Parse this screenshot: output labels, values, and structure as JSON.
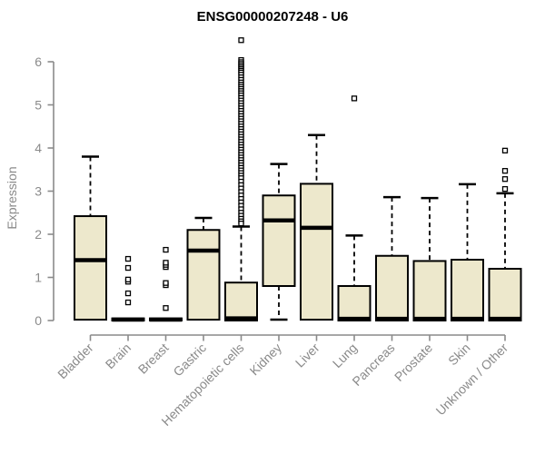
{
  "chart_data": {
    "type": "boxplot",
    "title": "ENSG00000207248 - U6",
    "ylabel": "Expression",
    "xlabel": "",
    "ylim": [
      0,
      6
    ],
    "yticks": [
      0,
      1,
      2,
      3,
      4,
      5,
      6
    ],
    "grid": false,
    "legend": "none",
    "categories": [
      "Bladder",
      "Brain",
      "Breast",
      "Gastric",
      "Hematopoietic cells",
      "Kidney",
      "Liver",
      "Lung",
      "Pancreas",
      "Prostate",
      "Skin",
      "Unknown / Other"
    ],
    "boxes": [
      {
        "category": "Bladder",
        "whisker_low": 0,
        "q1": 0.02,
        "median": 1.4,
        "q3": 2.42,
        "whisker_high": 3.8,
        "outliers": []
      },
      {
        "category": "Brain",
        "whisker_low": 0,
        "q1": 0,
        "median": 0.02,
        "q3": 0.05,
        "whisker_high": 0.05,
        "outliers": [
          0.42,
          0.63,
          0.9,
          0.95,
          1.22,
          1.43
        ]
      },
      {
        "category": "Breast",
        "whisker_low": 0,
        "q1": 0,
        "median": 0.02,
        "q3": 0.05,
        "whisker_high": 0.05,
        "outliers": [
          0.29,
          0.82,
          0.87,
          1.24,
          1.29,
          1.34,
          1.64
        ]
      },
      {
        "category": "Gastric",
        "whisker_low": 0,
        "q1": 0.02,
        "median": 1.62,
        "q3": 2.1,
        "whisker_high": 2.38,
        "outliers": []
      },
      {
        "category": "Hematopoietic cells",
        "whisker_low": 0,
        "q1": 0,
        "median": 0.05,
        "q3": 0.88,
        "whisker_high": 2.18,
        "outliers": [
          6.5,
          6.04,
          5.99,
          5.95,
          5.91,
          5.87,
          5.83,
          5.79,
          5.75,
          5.7,
          5.64,
          5.58,
          5.52,
          5.47,
          5.42,
          5.37,
          5.32,
          5.27,
          5.22,
          5.16,
          5.1,
          5.04,
          4.98,
          4.92,
          4.86,
          4.8,
          4.74,
          4.68,
          4.62,
          4.56,
          4.5,
          4.44,
          4.38,
          4.32,
          4.26,
          4.2,
          4.14,
          4.08,
          4.02,
          3.96,
          3.9,
          3.84,
          3.78,
          3.72,
          3.66,
          3.6,
          3.54,
          3.48,
          3.42,
          3.36,
          3.3,
          3.22,
          3.14,
          3.06,
          2.98,
          2.9,
          2.82,
          2.74,
          2.66,
          2.58,
          2.5,
          2.43,
          2.36,
          2.3,
          2.25
        ]
      },
      {
        "category": "Kidney",
        "whisker_low": 0.02,
        "q1": 0.8,
        "median": 2.32,
        "q3": 2.9,
        "whisker_high": 3.63,
        "outliers": []
      },
      {
        "category": "Liver",
        "whisker_low": 0,
        "q1": 0.02,
        "median": 2.15,
        "q3": 3.17,
        "whisker_high": 4.3,
        "outliers": []
      },
      {
        "category": "Lung",
        "whisker_low": 0,
        "q1": 0,
        "median": 0.04,
        "q3": 0.8,
        "whisker_high": 1.97,
        "outliers": [
          5.15
        ]
      },
      {
        "category": "Pancreas",
        "whisker_low": 0,
        "q1": 0,
        "median": 0.04,
        "q3": 1.5,
        "whisker_high": 2.86,
        "outliers": []
      },
      {
        "category": "Prostate",
        "whisker_low": 0,
        "q1": 0,
        "median": 0.04,
        "q3": 1.38,
        "whisker_high": 2.84,
        "outliers": []
      },
      {
        "category": "Skin",
        "whisker_low": 0,
        "q1": 0,
        "median": 0.04,
        "q3": 1.41,
        "whisker_high": 3.16,
        "outliers": []
      },
      {
        "category": "Unknown / Other",
        "whisker_low": 0,
        "q1": 0,
        "median": 0.04,
        "q3": 1.2,
        "whisker_high": 2.95,
        "outliers": [
          3.05,
          3.28,
          3.47,
          3.94
        ]
      }
    ],
    "colors": {
      "box_fill": "#EDE8CC",
      "box_stroke": "#000000",
      "median": "#000000",
      "whisker": "#000000",
      "outlier_stroke": "#000000",
      "outlier_fill": "#ffffff",
      "axis": "#8a8a8a",
      "tick_label": "#8a8a8a",
      "title": "#000000",
      "background": "#ffffff"
    }
  }
}
